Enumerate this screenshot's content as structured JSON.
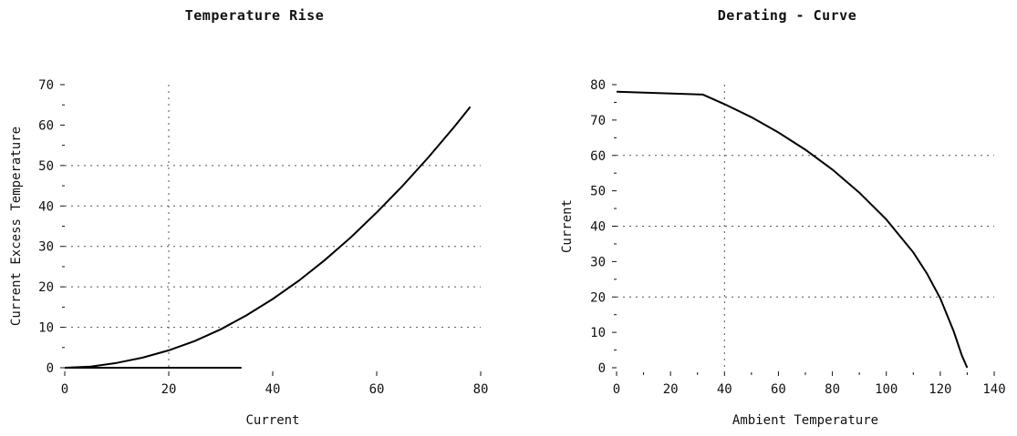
{
  "chart_data": [
    {
      "type": "line",
      "title": "Temperature Rise",
      "xlabel": "Current",
      "ylabel": "Current Excess Temperature",
      "xlim": [
        0,
        80
      ],
      "ylim": [
        0,
        70
      ],
      "xticks": [
        0,
        20,
        40,
        60,
        80
      ],
      "yticks": [
        0,
        10,
        20,
        30,
        40,
        50,
        60,
        70
      ],
      "grid": {
        "x": [
          20
        ],
        "y": [
          10,
          20,
          30,
          40,
          50
        ]
      },
      "series": [
        {
          "x": [
            0,
            5,
            10,
            15,
            20,
            25,
            30,
            35,
            40,
            45,
            50,
            55,
            60,
            65,
            70,
            75,
            78
          ],
          "y": [
            0,
            0.3,
            1.2,
            2.5,
            4.3,
            6.6,
            9.5,
            13.0,
            17.0,
            21.5,
            26.6,
            32.2,
            38.4,
            45.0,
            52.1,
            59.7,
            64.5
          ]
        },
        {
          "x": [
            0,
            34
          ],
          "y": [
            0,
            0
          ]
        }
      ]
    },
    {
      "type": "line",
      "title": "Derating - Curve",
      "xlabel": "Ambient Temperature",
      "ylabel": "Current",
      "xlim": [
        0,
        140
      ],
      "ylim": [
        0,
        80
      ],
      "xticks": [
        0,
        20,
        40,
        60,
        80,
        100,
        120,
        140
      ],
      "yticks": [
        0,
        10,
        20,
        30,
        40,
        50,
        60,
        70,
        80
      ],
      "grid": {
        "x": [
          40
        ],
        "y": [
          20,
          40,
          60
        ]
      },
      "series": [
        {
          "x": [
            0,
            32,
            40,
            50,
            60,
            70,
            80,
            90,
            100,
            110,
            115,
            120,
            125,
            128,
            130
          ],
          "y": [
            78,
            77.2,
            74.5,
            70.8,
            66.5,
            61.6,
            56.0,
            49.5,
            41.9,
            32.6,
            26.7,
            19.6,
            10.3,
            3.5,
            0
          ]
        }
      ]
    }
  ]
}
